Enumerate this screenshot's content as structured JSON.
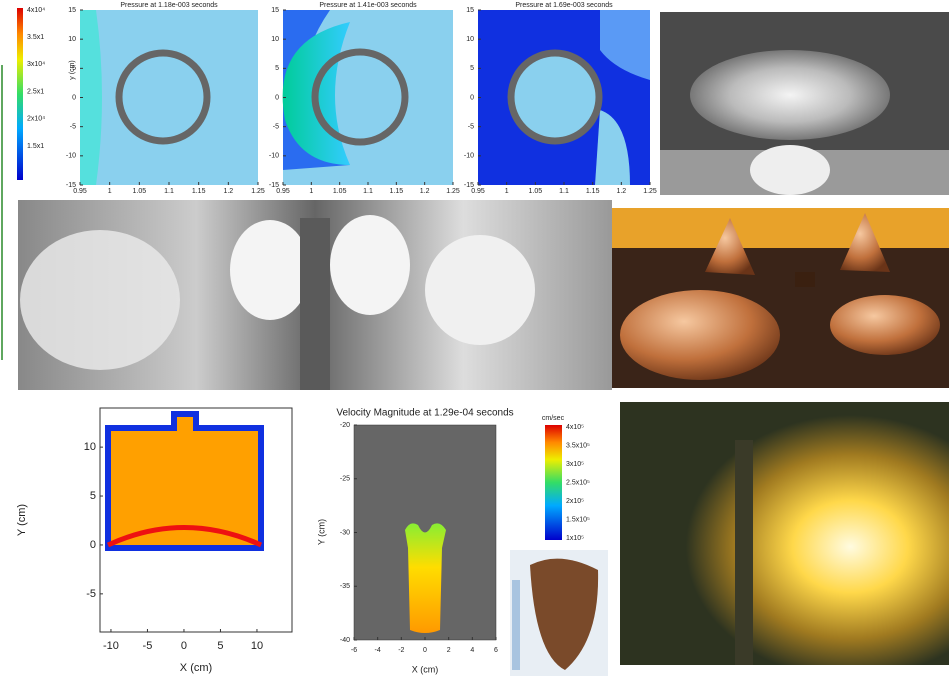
{
  "top_colorbar": {
    "labels": [
      "4x10⁴",
      "3.5x1",
      "3x10⁴",
      "2.5x1",
      "2x10⁴",
      "1.5x1"
    ]
  },
  "pressure_plots": [
    {
      "title": "Pressure at 1.18e-003 seconds",
      "ylabel": "y (cm)",
      "xlim": [
        0.95,
        1.25
      ],
      "ylim": [
        -15,
        15
      ],
      "xticks": [
        0.95,
        1,
        1.05,
        1.1,
        1.15,
        1.2,
        1.25
      ],
      "yticks": [
        15,
        10,
        5,
        0,
        -5,
        -10,
        -15
      ]
    },
    {
      "title": "Pressure at 1.41e-003 seconds",
      "xlim": [
        0.95,
        1.25
      ],
      "ylim": [
        -15,
        15
      ],
      "xticks": [
        0.95,
        1,
        1.05,
        1.1,
        1.15,
        1.2,
        1.25
      ],
      "yticks": [
        15,
        10,
        5,
        0,
        -5,
        -10,
        -15
      ]
    },
    {
      "title": "Pressure at 1.69e-003 seconds",
      "xlim": [
        0.95,
        1.25
      ],
      "ylim": [
        -15,
        15
      ],
      "xticks": [
        0.95,
        1,
        1.05,
        1.1,
        1.15,
        1.2,
        1.25
      ],
      "yticks": [
        15,
        10,
        5,
        0,
        -5,
        -10,
        -15
      ]
    }
  ],
  "geometry_plot": {
    "xlabel": "X (cm)",
    "ylabel": "Y (cm)",
    "xlim": [
      -11.5,
      14.8
    ],
    "ylim": [
      -8.9,
      14
    ],
    "xticks": [
      -10,
      -5,
      0,
      5,
      10
    ],
    "yticks": [
      10,
      5,
      0,
      -5
    ]
  },
  "velocity_plot": {
    "title": "Velocity Magnitude at 1.29e-04 seconds",
    "xlabel": "X (cm)",
    "ylabel": "Y (cm)",
    "xlim": [
      -6,
      6
    ],
    "ylim": [
      -40,
      -20
    ],
    "xticks": [
      -6,
      -4,
      -2,
      0,
      2,
      4,
      6
    ],
    "yticks": [
      -20,
      -25,
      -30,
      -35,
      -40
    ],
    "colorbar": {
      "unit": "cm/sec",
      "labels": [
        "4x10⁵",
        "3.5x10⁵",
        "3x10⁵",
        "2.5x10⁵",
        "2x10⁵",
        "1.5x10⁵",
        "1x10⁵"
      ]
    }
  }
}
